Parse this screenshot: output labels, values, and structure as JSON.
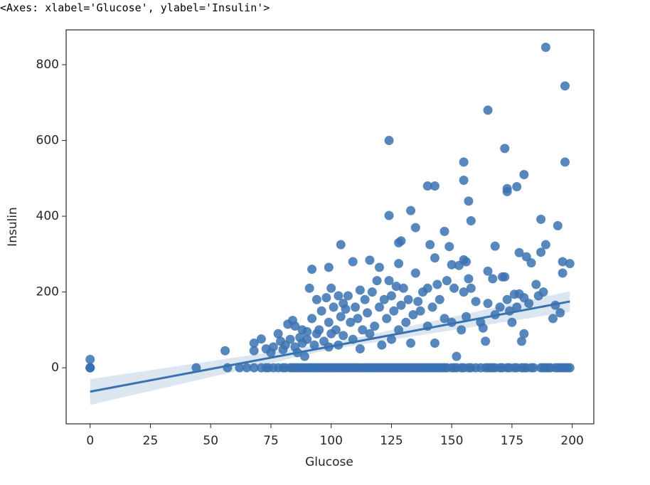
{
  "header": "<Axes: xlabel='Glucose', ylabel='Insulin'>",
  "chart_data": {
    "type": "scatter",
    "xlabel": "Glucose",
    "ylabel": "Insulin",
    "color": "#3a72b0",
    "xlim": [
      -9.95,
      208.95
    ],
    "ylim": [
      -148,
      892
    ],
    "xticks": [
      0,
      25,
      50,
      75,
      100,
      125,
      150,
      175,
      200
    ],
    "yticks": [
      0,
      200,
      400,
      600,
      800
    ],
    "x": [
      0,
      0,
      0,
      44,
      57,
      62,
      65,
      68,
      71,
      73,
      74,
      76,
      78,
      80,
      81,
      83,
      84,
      85,
      86,
      87,
      88,
      89,
      90,
      91,
      92,
      93,
      94,
      95,
      96,
      97,
      98,
      99,
      100,
      101,
      102,
      103,
      104,
      105,
      106,
      107,
      108,
      109,
      110,
      111,
      112,
      113,
      114,
      115,
      116,
      117,
      118,
      119,
      120,
      121,
      122,
      123,
      124,
      125,
      126,
      127,
      128,
      129,
      130,
      131,
      132,
      133,
      134,
      135,
      136,
      137,
      138,
      139,
      140,
      141,
      142,
      143,
      144,
      145,
      146,
      147,
      148,
      150,
      151,
      152,
      154,
      155,
      157,
      158,
      160,
      162,
      164,
      165,
      166,
      167,
      168,
      170,
      171,
      173,
      174,
      176,
      177,
      179,
      180,
      181,
      183,
      184,
      187,
      188,
      189,
      190,
      191,
      193,
      194,
      195,
      196,
      197,
      198,
      199,
      189,
      197,
      165,
      124,
      172,
      155,
      197,
      180,
      155,
      177,
      140,
      143,
      173,
      173,
      157,
      133,
      124,
      187,
      158,
      194,
      135,
      147,
      129,
      189,
      104,
      141,
      168,
      149,
      128,
      178,
      156,
      155,
      116,
      109,
      150,
      181,
      196,
      199,
      120,
      99,
      92,
      143,
      165,
      183,
      192,
      196,
      187,
      172,
      176,
      0,
      56,
      68,
      68,
      71,
      73,
      75,
      76,
      78,
      79,
      80,
      81,
      82,
      83,
      84,
      85,
      85,
      86,
      87,
      88,
      88,
      89,
      90,
      90,
      91,
      92,
      93,
      94,
      94,
      95,
      96,
      97,
      98,
      99,
      99,
      100,
      100,
      101,
      102,
      103,
      103,
      104,
      105,
      105,
      106,
      107,
      108,
      109,
      110,
      111,
      112,
      112,
      113,
      114,
      115,
      116,
      117,
      118,
      119,
      120,
      121,
      122,
      123,
      124,
      125,
      125,
      126,
      127,
      128,
      128,
      129,
      130,
      131,
      132,
      133,
      134,
      135,
      136,
      137,
      138,
      140,
      140,
      142,
      143,
      144,
      145,
      147,
      148,
      150,
      151,
      152,
      153,
      154,
      155,
      156,
      157,
      158,
      160,
      162,
      163,
      164,
      165,
      167,
      168,
      170,
      171,
      173,
      174,
      175,
      177,
      178,
      179,
      180,
      180,
      182,
      185,
      186,
      188,
      193,
      195
    ],
    "values": [
      0,
      0,
      0,
      0,
      0,
      0,
      0,
      0,
      0,
      0,
      0,
      0,
      0,
      0,
      0,
      0,
      0,
      0,
      0,
      0,
      0,
      0,
      0,
      0,
      0,
      0,
      0,
      0,
      0,
      0,
      0,
      0,
      0,
      0,
      0,
      0,
      0,
      0,
      0,
      0,
      0,
      0,
      0,
      0,
      0,
      0,
      0,
      0,
      0,
      0,
      0,
      0,
      0,
      0,
      0,
      0,
      0,
      0,
      0,
      0,
      0,
      0,
      0,
      0,
      0,
      0,
      0,
      0,
      0,
      0,
      0,
      0,
      0,
      0,
      0,
      0,
      0,
      0,
      0,
      0,
      0,
      0,
      0,
      0,
      0,
      0,
      0,
      0,
      0,
      0,
      0,
      0,
      0,
      0,
      0,
      0,
      0,
      0,
      0,
      0,
      0,
      0,
      0,
      0,
      0,
      0,
      0,
      0,
      0,
      0,
      0,
      0,
      0,
      0,
      0,
      0,
      0,
      0,
      846,
      744,
      680,
      600,
      579,
      543,
      543,
      510,
      495,
      478,
      480,
      480,
      473,
      465,
      440,
      415,
      402,
      392,
      388,
      375,
      370,
      360,
      335,
      325,
      325,
      325,
      321,
      320,
      330,
      304,
      280,
      285,
      284,
      280,
      272,
      293,
      280,
      275,
      265,
      265,
      260,
      290,
      255,
      277,
      130,
      250,
      305,
      240,
      194,
      22,
      45,
      65,
      45,
      76,
      50,
      40,
      55,
      90,
      70,
      48,
      60,
      115,
      75,
      125,
      110,
      55,
      40,
      80,
      65,
      100,
      30,
      95,
      75,
      210,
      130,
      60,
      90,
      180,
      100,
      150,
      70,
      185,
      120,
      55,
      210,
      90,
      160,
      100,
      190,
      60,
      135,
      170,
      85,
      155,
      190,
      120,
      75,
      160,
      130,
      50,
      205,
      100,
      180,
      145,
      90,
      200,
      110,
      230,
      160,
      60,
      180,
      130,
      230,
      190,
      75,
      150,
      215,
      100,
      275,
      165,
      210,
      120,
      180,
      65,
      140,
      250,
      175,
      150,
      200,
      210,
      110,
      160,
      65,
      220,
      180,
      130,
      230,
      120,
      210,
      30,
      270,
      100,
      200,
      135,
      235,
      210,
      175,
      120,
      105,
      70,
      170,
      235,
      140,
      160,
      240,
      180,
      150,
      120,
      160,
      195,
      70,
      90,
      185,
      170,
      220,
      190,
      200,
      165,
      145
    ],
    "regression": {
      "x": [
        0,
        100,
        199
      ],
      "values": [
        -63,
        56.6,
        175
      ],
      "ci_lower": [
        -98,
        49,
        148
      ],
      "ci_upper": [
        -30,
        65,
        202
      ]
    }
  }
}
